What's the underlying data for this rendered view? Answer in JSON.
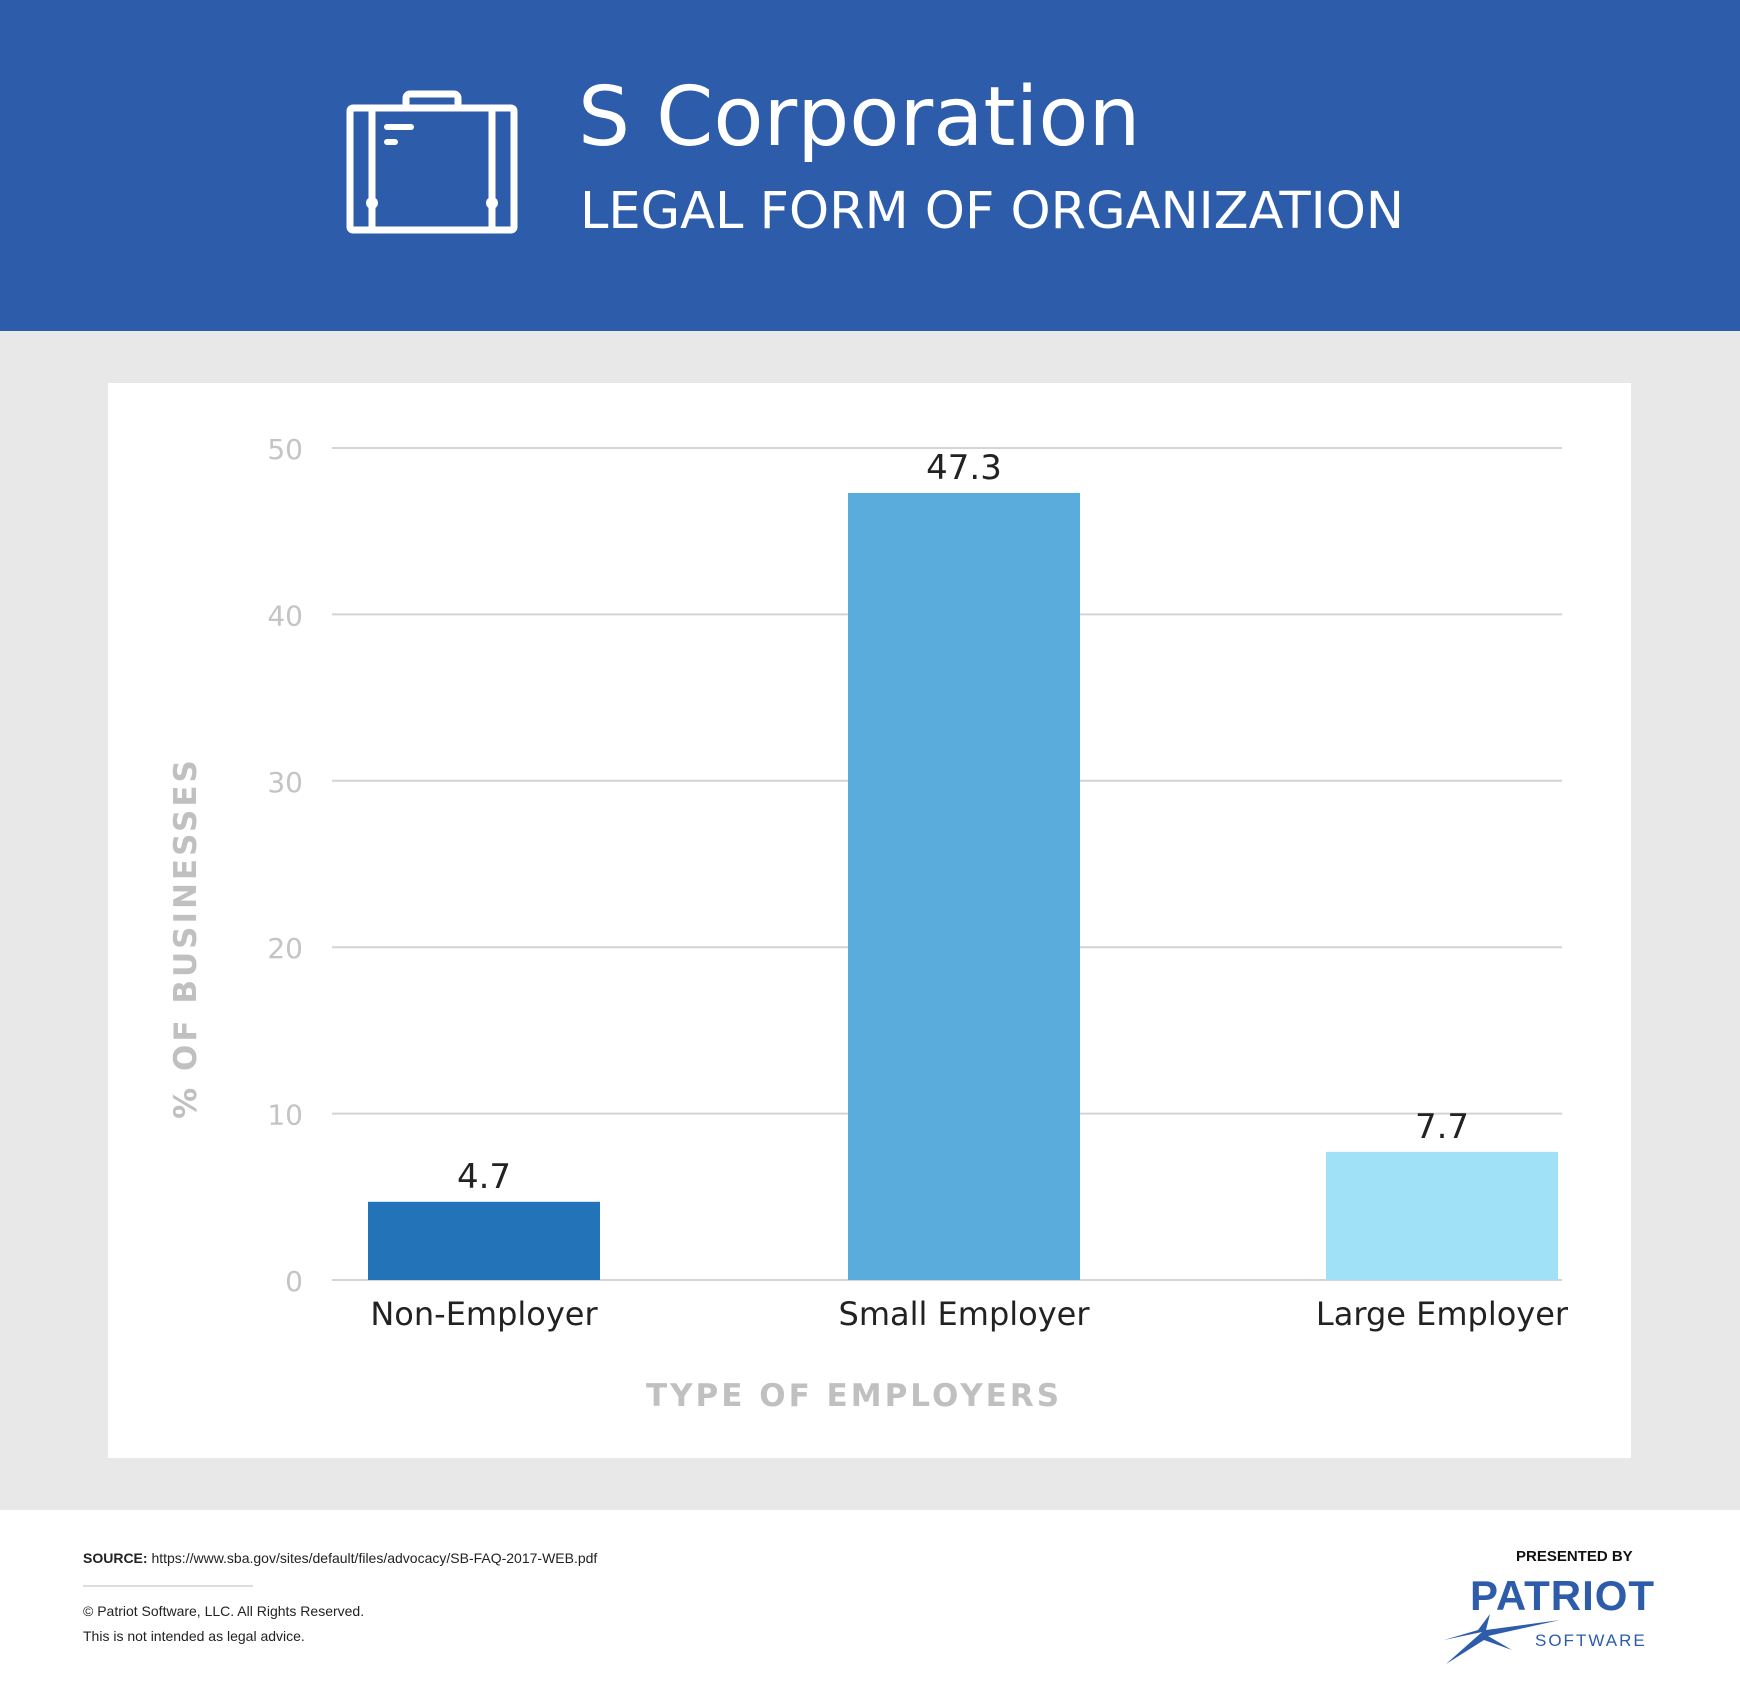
{
  "header": {
    "title": "S Corporation",
    "subtitle": "LEGAL FORM OF ORGANIZATION",
    "icon": "briefcase-icon",
    "background": "#2d5caa"
  },
  "chart_data": {
    "type": "bar",
    "categories": [
      "Non-Employer",
      "Small Employer",
      "Large Employer"
    ],
    "values": [
      4.7,
      47.3,
      7.7
    ],
    "data_labels": [
      "4.7",
      "47.3",
      "7.7"
    ],
    "colors": [
      "#2373b9",
      "#5aacdc",
      "#a0e1f8"
    ],
    "xlabel": "TYPE OF EMPLOYERS",
    "ylabel": "% OF BUSINESSES",
    "ylim": [
      0,
      50
    ],
    "yticks": [
      0,
      10,
      20,
      30,
      40,
      50
    ],
    "grid": true
  },
  "footer": {
    "source_label": "SOURCE:",
    "source_url": "https://www.sba.gov/sites/default/files/advocacy/SB-FAQ-2017-WEB.pdf",
    "copyright": "© Patriot Software, LLC. All Rights Reserved.",
    "disclaimer": "This is not intended as legal advice.",
    "presented_by": "PRESENTED BY",
    "logo_main": "PATRIOT",
    "logo_sub": "SOFTWARE"
  }
}
